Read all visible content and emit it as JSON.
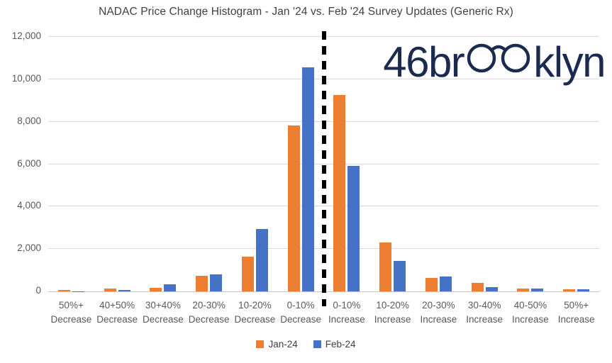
{
  "logo": {
    "prefix": "46br",
    "suffix": "klyn",
    "color": "#1B2A4E"
  },
  "chart_data": {
    "type": "bar",
    "title": "NADAC Price Change Histogram - Jan '24 vs. Feb '24 Survey Updates (Generic Rx)",
    "categories": [
      "50%+ Decrease",
      "40+50% Decrease",
      "30+40% Decrease",
      "20-30% Decrease",
      "10-20% Decrease",
      "0-10% Decrease",
      "0-10% Increase",
      "10-20% Increase",
      "20-30% Increase",
      "30-40% Increase",
      "40-50% Increase",
      "50%+ Increase"
    ],
    "series": [
      {
        "name": "Jan-24",
        "color": "#ED7D31",
        "values": [
          75,
          150,
          180,
          740,
          1640,
          7820,
          9270,
          2310,
          620,
          400,
          130,
          95
        ]
      },
      {
        "name": "Feb-24",
        "color": "#4472C4",
        "values": [
          15,
          60,
          350,
          810,
          2940,
          10550,
          5930,
          1430,
          690,
          190,
          140,
          105
        ]
      }
    ],
    "xlabel": "",
    "ylabel": "",
    "ylim": [
      0,
      12000
    ],
    "yticks": [
      0,
      2000,
      4000,
      6000,
      8000,
      10000,
      12000
    ],
    "ytick_labels": [
      "0",
      "2,000",
      "4,000",
      "6,000",
      "8,000",
      "10,000",
      "12,000"
    ],
    "grid": true,
    "legend_position": "bottom",
    "annotations": [
      "dashed vertical divider between Decrease and Increase halves"
    ]
  }
}
